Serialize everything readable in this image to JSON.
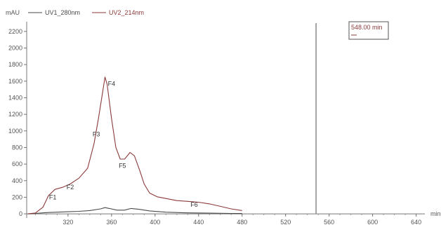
{
  "chart_data": {
    "type": "line",
    "ylabel": "mAU",
    "xlabel": "min",
    "xlim": [
      282,
      648
    ],
    "ylim": [
      -50,
      2300
    ],
    "x_ticks": [
      320,
      360,
      400,
      440,
      480,
      520,
      560,
      600,
      640
    ],
    "y_ticks": [
      0,
      200,
      400,
      600,
      800,
      1000,
      1200,
      1400,
      1600,
      1800,
      2000,
      2200
    ],
    "legend_position": "top-left",
    "series": [
      {
        "name": "UV1_280nm",
        "color": "#4a4a4a",
        "points": [
          [
            283,
            0
          ],
          [
            290,
            5
          ],
          [
            300,
            15
          ],
          [
            310,
            20
          ],
          [
            320,
            25
          ],
          [
            330,
            30
          ],
          [
            340,
            40
          ],
          [
            350,
            60
          ],
          [
            354,
            75
          ],
          [
            358,
            65
          ],
          [
            365,
            45
          ],
          [
            372,
            45
          ],
          [
            378,
            65
          ],
          [
            385,
            55
          ],
          [
            395,
            35
          ],
          [
            410,
            20
          ],
          [
            430,
            12
          ],
          [
            450,
            8
          ],
          [
            470,
            5
          ],
          [
            480,
            4
          ]
        ]
      },
      {
        "name": "UV2_214nm",
        "color": "#8b3a3a",
        "points": [
          [
            283,
            0
          ],
          [
            290,
            10
          ],
          [
            297,
            80
          ],
          [
            302,
            220
          ],
          [
            308,
            295
          ],
          [
            315,
            320
          ],
          [
            322,
            360
          ],
          [
            330,
            430
          ],
          [
            338,
            550
          ],
          [
            344,
            850
          ],
          [
            348,
            1150
          ],
          [
            352,
            1480
          ],
          [
            354,
            1650
          ],
          [
            356,
            1560
          ],
          [
            360,
            1150
          ],
          [
            364,
            800
          ],
          [
            368,
            660
          ],
          [
            372,
            660
          ],
          [
            377,
            740
          ],
          [
            381,
            700
          ],
          [
            386,
            520
          ],
          [
            390,
            360
          ],
          [
            395,
            250
          ],
          [
            402,
            205
          ],
          [
            410,
            185
          ],
          [
            420,
            160
          ],
          [
            430,
            150
          ],
          [
            440,
            140
          ],
          [
            450,
            120
          ],
          [
            460,
            90
          ],
          [
            470,
            60
          ],
          [
            480,
            40
          ]
        ]
      }
    ],
    "annotations": [
      {
        "text": "F1",
        "x": 306,
        "y": 200
      },
      {
        "text": "F2",
        "x": 322,
        "y": 320
      },
      {
        "text": "F3",
        "x": 346,
        "y": 960
      },
      {
        "text": "F4",
        "x": 360,
        "y": 1570
      },
      {
        "text": "F5",
        "x": 370,
        "y": 580
      },
      {
        "text": "F6",
        "x": 436,
        "y": 110
      }
    ],
    "vertical_marker": {
      "x": 548,
      "label": "548.00 min",
      "color": "#8b3a3a",
      "line_color": "#8a8a8a"
    }
  }
}
